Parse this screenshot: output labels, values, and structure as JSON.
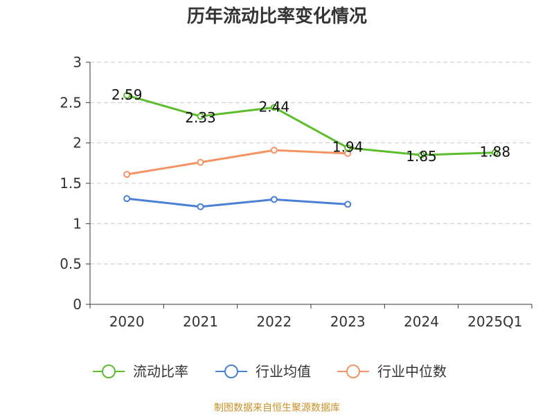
{
  "chart_data": {
    "type": "line",
    "title": "历年流动比率变化情况",
    "categories": [
      "2020",
      "2021",
      "2022",
      "2023",
      "2024",
      "2025Q1"
    ],
    "ylim": [
      0,
      3
    ],
    "yticks": [
      "0",
      "0.5",
      "1",
      "1.5",
      "2",
      "2.5",
      "3"
    ],
    "grid": true,
    "legend_position": "bottom",
    "series": [
      {
        "name": "流动比率",
        "color": "#5cbd2c",
        "values": [
          2.59,
          2.33,
          2.44,
          1.94,
          1.85,
          1.88
        ],
        "labels": [
          "2.59",
          "2.33",
          "2.44",
          "1.94",
          "1.85",
          "1.88"
        ]
      },
      {
        "name": "行业均值",
        "color": "#4a7fd6",
        "values": [
          1.31,
          1.21,
          1.3,
          1.24,
          null,
          null
        ]
      },
      {
        "name": "行业中位数",
        "color": "#f59364",
        "values": [
          1.61,
          1.76,
          1.91,
          1.87,
          null,
          null
        ]
      }
    ],
    "source": "制图数据来自恒生聚源数据库"
  }
}
